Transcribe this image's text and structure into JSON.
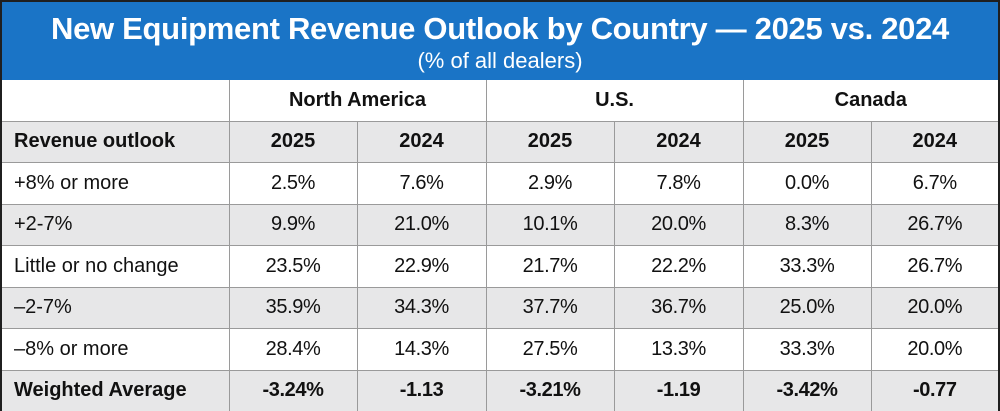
{
  "title": "New Equipment Revenue Outlook by Country — 2025 vs. 2024",
  "subtitle": "(% of all dealers)",
  "colors": {
    "header_bg": "#1a74c6",
    "header_text": "#ffffff",
    "shaded_row": "#e7e7e8",
    "border": "#9a9a9a"
  },
  "chart_data": {
    "type": "table",
    "title": "New Equipment Revenue Outlook by Country — 2025 vs. 2024",
    "subtitle": "(% of all dealers)",
    "groups": [
      {
        "name": "North America",
        "years": [
          "2025",
          "2024"
        ]
      },
      {
        "name": "U.S.",
        "years": [
          "2025",
          "2024"
        ]
      },
      {
        "name": "Canada",
        "years": [
          "2025",
          "2024"
        ]
      }
    ],
    "row_header_label": "Revenue outlook",
    "rows": [
      {
        "label": "+8% or more",
        "values": [
          "2.5%",
          "7.6%",
          "2.9%",
          "7.8%",
          "0.0%",
          "6.7%"
        ]
      },
      {
        "label": "+2-7%",
        "values": [
          "9.9%",
          "21.0%",
          "10.1%",
          "20.0%",
          "8.3%",
          "26.7%"
        ]
      },
      {
        "label": "Little or no change",
        "values": [
          "23.5%",
          "22.9%",
          "21.7%",
          "22.2%",
          "33.3%",
          "26.7%"
        ]
      },
      {
        "label": "–2-7%",
        "values": [
          "35.9%",
          "34.3%",
          "37.7%",
          "36.7%",
          "25.0%",
          "20.0%"
        ]
      },
      {
        "label": "–8% or more",
        "values": [
          "28.4%",
          "14.3%",
          "27.5%",
          "13.3%",
          "33.3%",
          "20.0%"
        ]
      },
      {
        "label": "Weighted Average",
        "values": [
          "-3.24%",
          "-1.13",
          "-3.21%",
          "-1.19",
          "-3.42%",
          "-0.77"
        ]
      }
    ]
  }
}
